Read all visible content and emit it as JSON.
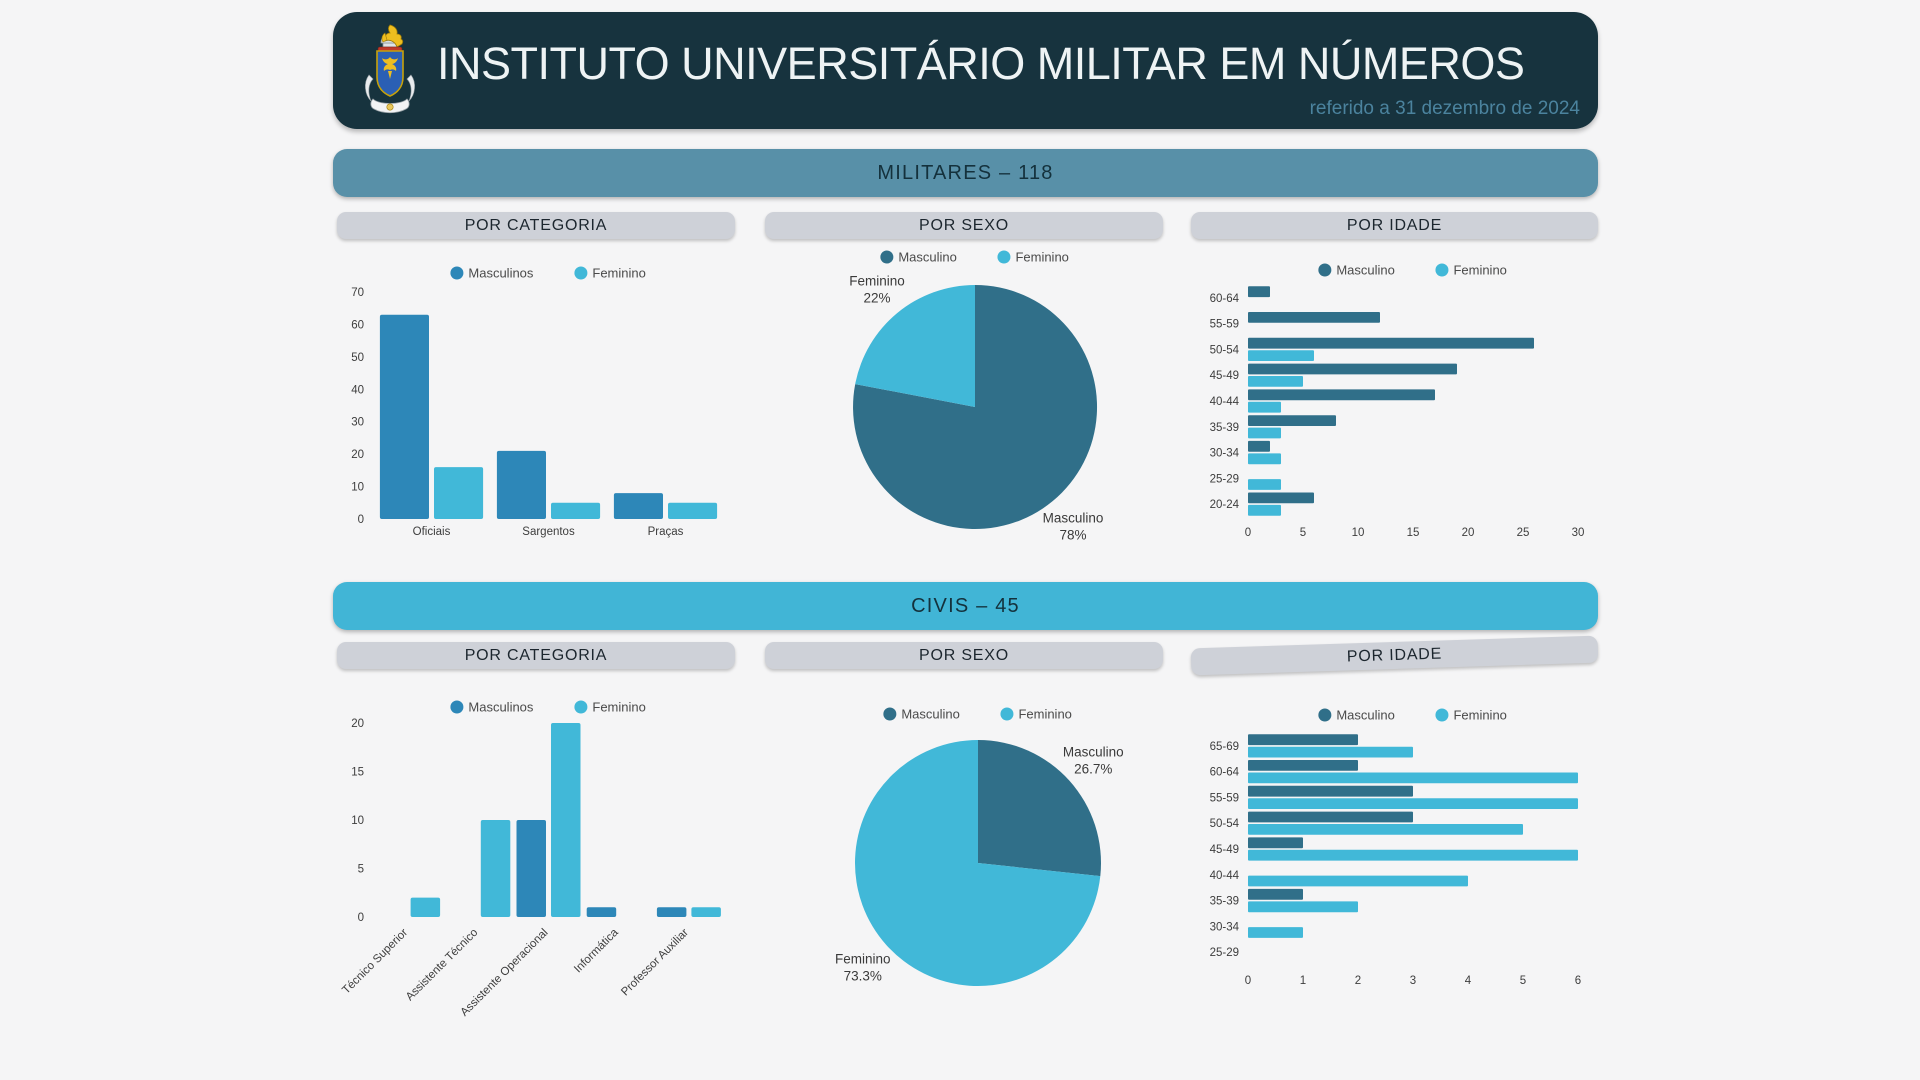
{
  "header": {
    "title": "INSTITUTO UNIVERSITÁRIO MILITAR EM NÚMEROS",
    "subtitle": "referido a 31 dezembro de 2024",
    "logo": "ium-coat-of-arms"
  },
  "colors": {
    "page_bg": "#f5f5f6",
    "header_bg": "#17333e",
    "header_title_text": "#eef3f4",
    "header_subtitle_text": "#4b839e",
    "militares_banner": "#5890a8",
    "civis_banner": "#41b5d6",
    "pill_bg": "#ced1d8",
    "masculino_blue": "#2d87b8",
    "masculino_teal": "#306f89",
    "feminino_cyan": "#41b8d8",
    "axis_text": "#3d3d3d"
  },
  "sections": [
    {
      "id": "militares",
      "banner": "MILITARES – 118",
      "headers": [
        "POR CATEGORIA",
        "POR SEXO",
        "POR IDADE"
      ]
    },
    {
      "id": "civis",
      "banner": "CIVIS – 45",
      "headers": [
        "POR CATEGORIA",
        "POR SEXO",
        "POR IDADE"
      ]
    }
  ],
  "chart_data": [
    {
      "id": "militares-categoria",
      "type": "bar",
      "title": "POR CATEGORIA",
      "categories": [
        "Oficiais",
        "Sargentos",
        "Praças"
      ],
      "series": [
        {
          "name": "Masculinos",
          "color": "#2d87b8",
          "values": [
            63,
            21,
            8
          ]
        },
        {
          "name": "Feminino",
          "color": "#41b8d8",
          "values": [
            16,
            5,
            5
          ]
        }
      ],
      "ylim": [
        0,
        70
      ],
      "yticks": [
        0,
        10,
        20,
        30,
        40,
        50,
        60,
        70
      ],
      "grid": false,
      "legend_position": "top"
    },
    {
      "id": "militares-sexo",
      "type": "pie",
      "title": "POR SEXO",
      "slices": [
        {
          "name": "Masculino",
          "value": 78,
          "pct_label": "78%",
          "color": "#306f89"
        },
        {
          "name": "Feminino",
          "value": 22,
          "pct_label": "22%",
          "color": "#41b8d8"
        }
      ],
      "legend_position": "top"
    },
    {
      "id": "militares-idade",
      "type": "hbar",
      "title": "POR IDADE",
      "categories": [
        "60-64",
        "55-59",
        "50-54",
        "45-49",
        "40-44",
        "35-39",
        "30-34",
        "25-29",
        "20-24"
      ],
      "series": [
        {
          "name": "Masculino",
          "color": "#306f89",
          "values": [
            2,
            12,
            26,
            19,
            17,
            8,
            2,
            0,
            6
          ]
        },
        {
          "name": "Feminino",
          "color": "#41b8d8",
          "values": [
            0,
            0,
            6,
            5,
            3,
            3,
            3,
            3,
            3
          ]
        }
      ],
      "xlim": [
        0,
        30
      ],
      "xticks": [
        0,
        5,
        10,
        15,
        20,
        25,
        30
      ],
      "grid": false,
      "legend_position": "top"
    },
    {
      "id": "civis-categoria",
      "type": "bar",
      "title": "POR CATEGORIA",
      "categories": [
        "Técnico Superior",
        "Assistente Técnico",
        "Assistente Operacional",
        "Informática",
        "Professor Auxiliar"
      ],
      "series": [
        {
          "name": "Masculinos",
          "color": "#2d87b8",
          "values": [
            0,
            0,
            10,
            1,
            1
          ]
        },
        {
          "name": "Feminino",
          "color": "#41b8d8",
          "values": [
            2,
            10,
            20,
            0,
            1
          ]
        }
      ],
      "ylim": [
        0,
        20
      ],
      "yticks": [
        0,
        5,
        10,
        15,
        20
      ],
      "rotate_labels": 45,
      "grid": false,
      "legend_position": "top"
    },
    {
      "id": "civis-sexo",
      "type": "pie",
      "title": "POR SEXO",
      "slices": [
        {
          "name": "Masculino",
          "value": 26.7,
          "pct_label": "26.7%",
          "color": "#306f89"
        },
        {
          "name": "Feminino",
          "value": 73.3,
          "pct_label": "73.3%",
          "color": "#41b8d8"
        }
      ],
      "legend_position": "top"
    },
    {
      "id": "civis-idade",
      "type": "hbar",
      "title": "POR IDADE",
      "categories": [
        "65-69",
        "60-64",
        "55-59",
        "50-54",
        "45-49",
        "40-44",
        "35-39",
        "30-34",
        "25-29"
      ],
      "series": [
        {
          "name": "Masculino",
          "color": "#306f89",
          "values": [
            2,
            2,
            3,
            3,
            1,
            0,
            1,
            0,
            0
          ]
        },
        {
          "name": "Feminino",
          "color": "#41b8d8",
          "values": [
            3,
            6,
            6,
            5,
            6,
            4,
            2,
            1,
            0
          ]
        }
      ],
      "xlim": [
        0,
        6
      ],
      "xticks": [
        0,
        1,
        2,
        3,
        4,
        5,
        6
      ],
      "grid": false,
      "legend_position": "top"
    }
  ]
}
